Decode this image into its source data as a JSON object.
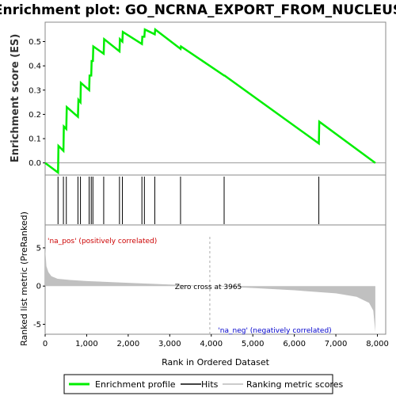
{
  "title": "Enrichment plot: GO_NCRNA_EXPORT_FROM_NUCLEUS",
  "colors": {
    "enrichment_line": "#00ee00",
    "hit_line": "#000000",
    "ranked_fill": "#c0c0c0",
    "zero_line": "#aaaaaa",
    "pos_label": "#cc0000",
    "neg_label": "#0000cc"
  },
  "chart_data": [
    {
      "type": "line",
      "name": "enrichment-score-panel",
      "ylabel": "Enrichment score (ES)",
      "xlim": [
        0,
        8200
      ],
      "ylim": [
        -0.05,
        0.58
      ],
      "yticks": [
        0.0,
        0.1,
        0.2,
        0.3,
        0.4,
        0.5
      ],
      "ytick_labels": [
        "0.0",
        "0.1",
        "0.2",
        "0.3",
        "0.4",
        "0.5"
      ],
      "points": [
        [
          0,
          0.0
        ],
        [
          310,
          -0.04
        ],
        [
          320,
          0.07
        ],
        [
          440,
          0.05
        ],
        [
          450,
          0.15
        ],
        [
          510,
          0.14
        ],
        [
          520,
          0.23
        ],
        [
          790,
          0.19
        ],
        [
          800,
          0.26
        ],
        [
          850,
          0.25
        ],
        [
          860,
          0.33
        ],
        [
          1060,
          0.3
        ],
        [
          1070,
          0.36
        ],
        [
          1110,
          0.36
        ],
        [
          1120,
          0.42
        ],
        [
          1150,
          0.42
        ],
        [
          1160,
          0.48
        ],
        [
          1410,
          0.45
        ],
        [
          1420,
          0.51
        ],
        [
          1790,
          0.46
        ],
        [
          1800,
          0.51
        ],
        [
          1860,
          0.5
        ],
        [
          1870,
          0.54
        ],
        [
          2330,
          0.49
        ],
        [
          2340,
          0.52
        ],
        [
          2390,
          0.52
        ],
        [
          2400,
          0.55
        ],
        [
          2640,
          0.53
        ],
        [
          2650,
          0.55
        ],
        [
          3260,
          0.47
        ],
        [
          3270,
          0.48
        ],
        [
          4310,
          0.36
        ],
        [
          4320,
          0.36
        ],
        [
          6590,
          0.08
        ],
        [
          6600,
          0.17
        ],
        [
          7950,
          0.0
        ]
      ]
    },
    {
      "type": "line",
      "name": "ranked-list-metric-panel",
      "ylabel": "Ranked list metric (PreRanked)",
      "xlabel": "Rank in Ordered Dataset",
      "xlim": [
        0,
        8200
      ],
      "ylim": [
        -6.3,
        8
      ],
      "yticks": [
        -5,
        0,
        5
      ],
      "ytick_labels": [
        "-5",
        "0",
        "5"
      ],
      "xticks": [
        0,
        1000,
        2000,
        3000,
        4000,
        5000,
        6000,
        7000,
        8000
      ],
      "xtick_labels": [
        "0",
        "1,000",
        "2,000",
        "3,000",
        "4,000",
        "5,000",
        "6,000",
        "7,000",
        "8,000"
      ],
      "zero_cross": 3965,
      "points": [
        [
          0,
          5.0
        ],
        [
          30,
          2.6
        ],
        [
          80,
          1.8
        ],
        [
          150,
          1.3
        ],
        [
          300,
          0.95
        ],
        [
          600,
          0.8
        ],
        [
          1000,
          0.65
        ],
        [
          2000,
          0.42
        ],
        [
          3000,
          0.2
        ],
        [
          3965,
          0.0
        ],
        [
          5000,
          -0.25
        ],
        [
          6000,
          -0.55
        ],
        [
          7000,
          -0.95
        ],
        [
          7500,
          -1.4
        ],
        [
          7800,
          -2.2
        ],
        [
          7900,
          -3.2
        ],
        [
          7950,
          -6.0
        ]
      ]
    },
    {
      "type": "hits",
      "name": "hits-panel",
      "positions": [
        310,
        440,
        510,
        790,
        850,
        1060,
        1110,
        1150,
        1410,
        1790,
        1860,
        2330,
        2390,
        2640,
        3260,
        4310,
        6590
      ]
    },
    {
      "type": "heatmap",
      "name": "ranking-color-bar",
      "segments": [
        {
          "from": 0,
          "to": 1450,
          "color": "#f06060"
        },
        {
          "from": 1450,
          "to": 3000,
          "color": "#f59090"
        },
        {
          "from": 3000,
          "to": 3950,
          "color": "#fbc0dc"
        },
        {
          "from": 3950,
          "to": 5050,
          "color": "#d8d8f8"
        },
        {
          "from": 5050,
          "to": 5900,
          "color": "#c0c0f4"
        },
        {
          "from": 5900,
          "to": 6450,
          "color": "#8f8ff0"
        },
        {
          "from": 6450,
          "to": 7650,
          "color": "#6a6ae6"
        },
        {
          "from": 7650,
          "to": 7950,
          "color": "#2a00cc"
        }
      ]
    }
  ],
  "annotations": {
    "zero_cross_label": "Zero cross at 3965",
    "pos_label": "'na_pos' (positively correlated)",
    "neg_label": "'na_neg' (negatively correlated)"
  },
  "legend": {
    "items": [
      {
        "label": "Enrichment profile",
        "color": "#00ee00"
      },
      {
        "label": "Hits",
        "color": "#444444"
      },
      {
        "label": "Ranking metric scores",
        "color": "#cccccc"
      }
    ]
  }
}
